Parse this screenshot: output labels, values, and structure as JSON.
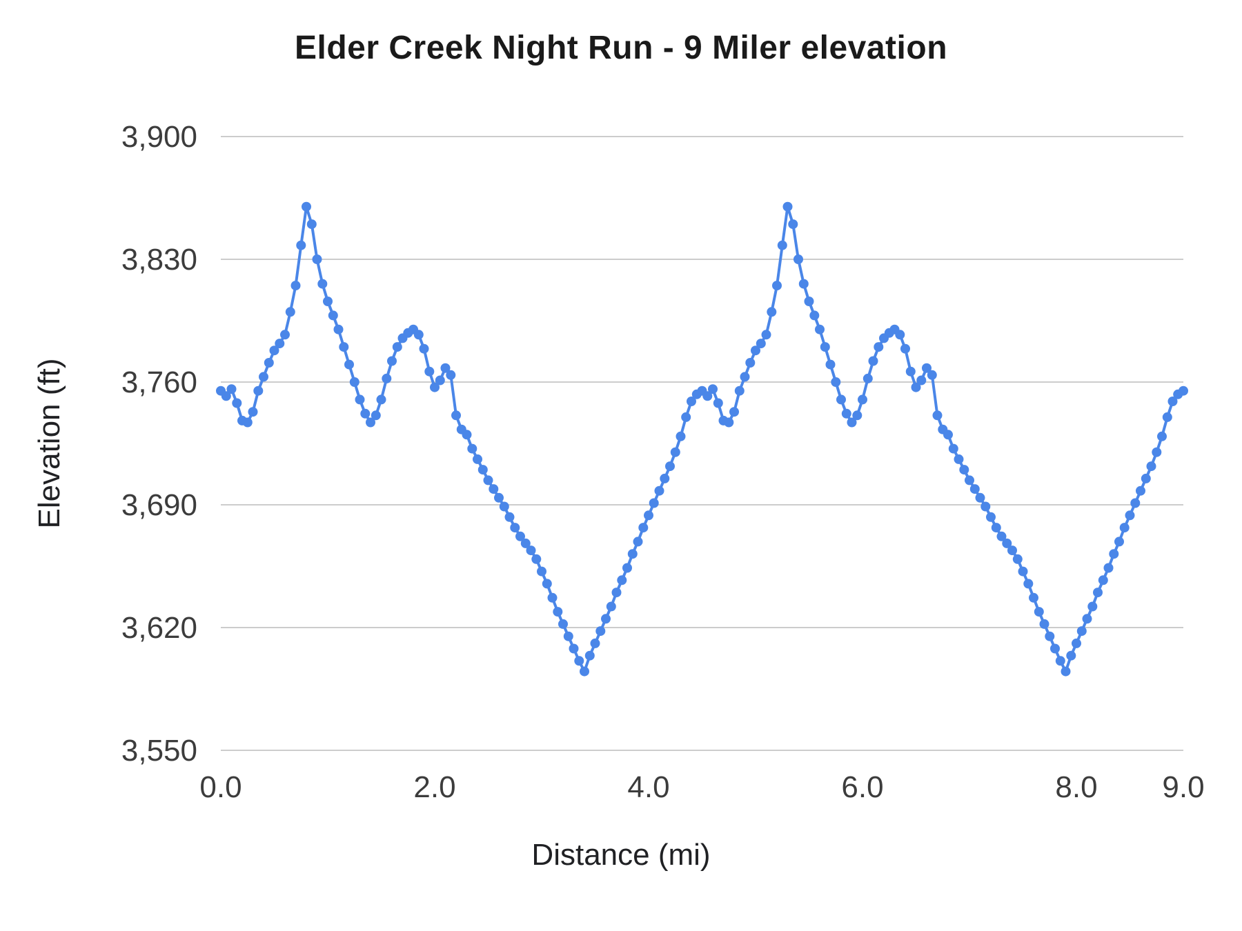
{
  "chart_data": {
    "type": "line",
    "title": "Elder Creek Night Run - 9 Miler elevation",
    "xlabel": "Distance (mi)",
    "ylabel": "Elevation (ft)",
    "xlim": [
      0,
      9
    ],
    "ylim": [
      3550,
      3900
    ],
    "xticks": [
      0,
      2,
      4,
      6,
      8,
      9
    ],
    "xtick_labels": [
      "0.0",
      "2.0",
      "4.0",
      "6.0",
      "8.0",
      "9.0"
    ],
    "yticks": [
      3550,
      3620,
      3690,
      3760,
      3830,
      3900
    ],
    "ytick_labels": [
      "3,550",
      "3,620",
      "3,690",
      "3,760",
      "3,830",
      "3,900"
    ],
    "grid": true,
    "legend_position": "none",
    "line_color": "#4a86e8",
    "grid_color": "#cccccc",
    "text_color": "#3c3c3c",
    "title_color": "#1a1a1a",
    "x": [
      0,
      0.05,
      0.1,
      0.15,
      0.2,
      0.25,
      0.3,
      0.35,
      0.4,
      0.45,
      0.5,
      0.55,
      0.6,
      0.65,
      0.7,
      0.75,
      0.8,
      0.85,
      0.9,
      0.95,
      1,
      1.05,
      1.1,
      1.15,
      1.2,
      1.25,
      1.3,
      1.35,
      1.4,
      1.45,
      1.5,
      1.55,
      1.6,
      1.65,
      1.7,
      1.75,
      1.8,
      1.85,
      1.9,
      1.95,
      2,
      2.05,
      2.1,
      2.15,
      2.2,
      2.25,
      2.3,
      2.35,
      2.4,
      2.45,
      2.5,
      2.55,
      2.6,
      2.65,
      2.7,
      2.75,
      2.8,
      2.85,
      2.9,
      2.95,
      3,
      3.05,
      3.1,
      3.15,
      3.2,
      3.25,
      3.3,
      3.35,
      3.4,
      3.45,
      3.5,
      3.55,
      3.6,
      3.65,
      3.7,
      3.75,
      3.8,
      3.85,
      3.9,
      3.95,
      4,
      4.05,
      4.1,
      4.15,
      4.2,
      4.25,
      4.3,
      4.35,
      4.4,
      4.45,
      4.5,
      4.55,
      4.6,
      4.65,
      4.7,
      4.75,
      4.8,
      4.85,
      4.9,
      4.95,
      5,
      5.05,
      5.1,
      5.15,
      5.2,
      5.25,
      5.3,
      5.35,
      5.4,
      5.45,
      5.5,
      5.55,
      5.6,
      5.65,
      5.7,
      5.75,
      5.8,
      5.85,
      5.9,
      5.95,
      6,
      6.05,
      6.1,
      6.15,
      6.2,
      6.25,
      6.3,
      6.35,
      6.4,
      6.45,
      6.5,
      6.55,
      6.6,
      6.65,
      6.7,
      6.75,
      6.8,
      6.85,
      6.9,
      6.95,
      7,
      7.05,
      7.1,
      7.15,
      7.2,
      7.25,
      7.3,
      7.35,
      7.4,
      7.45,
      7.5,
      7.55,
      7.6,
      7.65,
      7.7,
      7.75,
      7.8,
      7.85,
      7.9,
      7.95,
      8,
      8.05,
      8.1,
      8.15,
      8.2,
      8.25,
      8.3,
      8.35,
      8.4,
      8.45,
      8.5,
      8.55,
      8.6,
      8.65,
      8.7,
      8.75,
      8.8,
      8.85,
      8.9,
      8.95,
      9
    ],
    "y": [
      3755,
      3752,
      3756,
      3748,
      3738,
      3737,
      3743,
      3755,
      3763,
      3771,
      3778,
      3782,
      3787,
      3800,
      3815,
      3838,
      3860,
      3850,
      3830,
      3816,
      3806,
      3798,
      3790,
      3780,
      3770,
      3760,
      3750,
      3742,
      3737,
      3741,
      3750,
      3762,
      3772,
      3780,
      3785,
      3788,
      3790,
      3787,
      3779,
      3766,
      3757,
      3761,
      3768,
      3764,
      3741,
      3733,
      3730,
      3722,
      3716,
      3710,
      3704,
      3699,
      3694,
      3689,
      3683,
      3677,
      3672,
      3668,
      3664,
      3659,
      3652,
      3645,
      3637,
      3629,
      3622,
      3615,
      3608,
      3601,
      3595,
      3604,
      3611,
      3618,
      3625,
      3632,
      3640,
      3647,
      3654,
      3662,
      3669,
      3677,
      3684,
      3691,
      3698,
      3705,
      3712,
      3720,
      3729,
      3740,
      3749,
      3753,
      3755,
      3752,
      3756,
      3748,
      3738,
      3737,
      3743,
      3755,
      3763,
      3771,
      3778,
      3782,
      3787,
      3800,
      3815,
      3838,
      3860,
      3850,
      3830,
      3816,
      3806,
      3798,
      3790,
      3780,
      3770,
      3760,
      3750,
      3742,
      3737,
      3741,
      3750,
      3762,
      3772,
      3780,
      3785,
      3788,
      3790,
      3787,
      3779,
      3766,
      3757,
      3761,
      3768,
      3764,
      3741,
      3733,
      3730,
      3722,
      3716,
      3710,
      3704,
      3699,
      3694,
      3689,
      3683,
      3677,
      3672,
      3668,
      3664,
      3659,
      3652,
      3645,
      3637,
      3629,
      3622,
      3615,
      3608,
      3601,
      3595,
      3604,
      3611,
      3618,
      3625,
      3632,
      3640,
      3647,
      3654,
      3662,
      3669,
      3677,
      3684,
      3691,
      3698,
      3705,
      3712,
      3720,
      3729,
      3740,
      3749,
      3753,
      3755
    ]
  }
}
